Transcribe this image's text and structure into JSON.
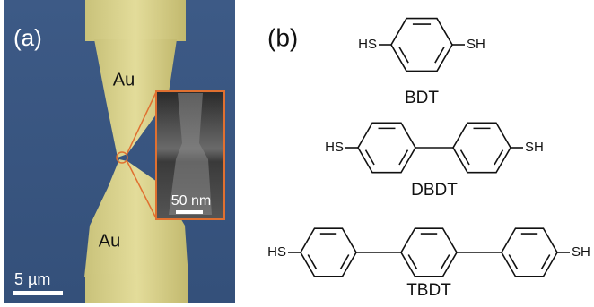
{
  "panel_a": {
    "label": "(a)",
    "electrode_top": "Au",
    "electrode_bottom": "Au",
    "inset_scale": "50 nm",
    "scale_bar": "5 µm"
  },
  "panel_b": {
    "label": "(b)",
    "molecules": [
      {
        "name": "BDT",
        "left_group": "HS",
        "right_group": "SH"
      },
      {
        "name": "DBDT",
        "left_group": "HS",
        "right_group": "SH"
      },
      {
        "name": "TBDT",
        "left_group": "HS",
        "right_group": "SH"
      }
    ]
  }
}
